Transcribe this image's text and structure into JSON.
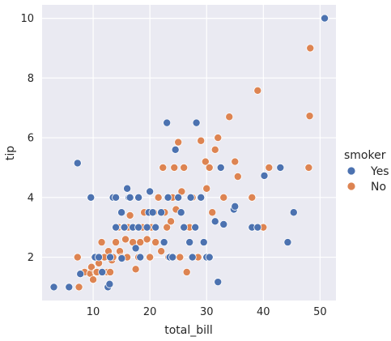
{
  "chart_data": {
    "type": "scatter",
    "title": "",
    "xlabel": "total_bill",
    "ylabel": "tip",
    "xlim": [
      1.0,
      52.8
    ],
    "ylim": [
      0.55,
      10.45
    ],
    "xticks": [
      10,
      20,
      30,
      40,
      50
    ],
    "yticks": [
      2,
      4,
      6,
      8,
      10
    ],
    "grid": true,
    "legend": {
      "title": "smoker",
      "placement": "right"
    },
    "series": [
      {
        "name": "Yes",
        "color": "#4c72b0",
        "points": [
          [
            3.07,
            1.0
          ],
          [
            5.75,
            1.0
          ],
          [
            7.25,
            5.15
          ],
          [
            7.74,
            1.44
          ],
          [
            9.6,
            4.0
          ],
          [
            10.34,
            2.0
          ],
          [
            11.0,
            2.0
          ],
          [
            11.59,
            1.5
          ],
          [
            12.6,
            1.0
          ],
          [
            12.9,
            1.1
          ],
          [
            13.0,
            2.0
          ],
          [
            13.5,
            4.0
          ],
          [
            14.0,
            3.0
          ],
          [
            14.0,
            4.0
          ],
          [
            15.0,
            3.5
          ],
          [
            15.04,
            1.96
          ],
          [
            15.5,
            3.0
          ],
          [
            16.0,
            4.3
          ],
          [
            16.3,
            4.0
          ],
          [
            16.5,
            4.0
          ],
          [
            17.0,
            3.0
          ],
          [
            17.5,
            2.3
          ],
          [
            18.0,
            4.0
          ],
          [
            18.0,
            3.0
          ],
          [
            18.3,
            2.0
          ],
          [
            19.5,
            3.0
          ],
          [
            19.8,
            3.5
          ],
          [
            20.0,
            4.2
          ],
          [
            20.5,
            3.5
          ],
          [
            21.0,
            3.0
          ],
          [
            22.0,
            3.5
          ],
          [
            22.5,
            2.5
          ],
          [
            23.0,
            6.5
          ],
          [
            23.2,
            4.0
          ],
          [
            23.5,
            2.0
          ],
          [
            24.0,
            2.0
          ],
          [
            24.5,
            5.6
          ],
          [
            25.0,
            4.0
          ],
          [
            25.5,
            3.5
          ],
          [
            26.0,
            3.0
          ],
          [
            27.0,
            2.5
          ],
          [
            27.2,
            4.0
          ],
          [
            27.5,
            2.0
          ],
          [
            28.0,
            3.0
          ],
          [
            28.2,
            6.5
          ],
          [
            29.0,
            4.0
          ],
          [
            29.5,
            2.5
          ],
          [
            30.0,
            2.0
          ],
          [
            30.5,
            2.0
          ],
          [
            31.5,
            3.2
          ],
          [
            32.0,
            1.17
          ],
          [
            32.5,
            5.0
          ],
          [
            33.0,
            3.1
          ],
          [
            34.8,
            3.6
          ],
          [
            35.0,
            3.7
          ],
          [
            38.0,
            3.0
          ],
          [
            39.0,
            3.0
          ],
          [
            40.17,
            4.73
          ],
          [
            43.0,
            5.0
          ],
          [
            44.3,
            2.5
          ],
          [
            45.35,
            3.5
          ],
          [
            50.81,
            10.0
          ]
        ]
      },
      {
        "name": "No",
        "color": "#dd8452",
        "points": [
          [
            7.25,
            2.0
          ],
          [
            7.5,
            1.0
          ],
          [
            8.5,
            1.5
          ],
          [
            9.5,
            1.45
          ],
          [
            9.7,
            1.67
          ],
          [
            10.0,
            1.25
          ],
          [
            10.2,
            2.0
          ],
          [
            10.5,
            1.5
          ],
          [
            10.65,
            1.5
          ],
          [
            11.0,
            1.8
          ],
          [
            11.5,
            2.5
          ],
          [
            12.0,
            2.0
          ],
          [
            12.5,
            1.5
          ],
          [
            12.7,
            2.2
          ],
          [
            13.0,
            1.5
          ],
          [
            13.3,
            1.9
          ],
          [
            13.5,
            2.0
          ],
          [
            14.0,
            2.5
          ],
          [
            14.5,
            3.0
          ],
          [
            14.7,
            2.2
          ],
          [
            15.0,
            2.0
          ],
          [
            15.4,
            3.0
          ],
          [
            15.7,
            2.6
          ],
          [
            16.0,
            2.0
          ],
          [
            16.2,
            3.0
          ],
          [
            16.5,
            3.4
          ],
          [
            17.0,
            2.5
          ],
          [
            17.3,
            3.0
          ],
          [
            17.5,
            1.6
          ],
          [
            18.0,
            2.0
          ],
          [
            18.3,
            2.5
          ],
          [
            18.7,
            3.0
          ],
          [
            19.0,
            3.5
          ],
          [
            19.5,
            2.6
          ],
          [
            20.0,
            2.0
          ],
          [
            20.3,
            3.0
          ],
          [
            20.7,
            3.5
          ],
          [
            21.0,
            2.5
          ],
          [
            21.5,
            4.0
          ],
          [
            22.0,
            2.2
          ],
          [
            22.3,
            5.0
          ],
          [
            22.6,
            3.5
          ],
          [
            23.0,
            3.0
          ],
          [
            23.3,
            2.0
          ],
          [
            23.7,
            3.2
          ],
          [
            24.0,
            4.0
          ],
          [
            24.3,
            5.0
          ],
          [
            24.6,
            3.6
          ],
          [
            25.0,
            5.85
          ],
          [
            25.3,
            2.0
          ],
          [
            25.6,
            4.2
          ],
          [
            26.0,
            5.0
          ],
          [
            26.5,
            1.5
          ],
          [
            27.0,
            3.0
          ],
          [
            27.5,
            4.0
          ],
          [
            28.0,
            3.0
          ],
          [
            28.5,
            2.0
          ],
          [
            29.0,
            5.9
          ],
          [
            29.8,
            5.2
          ],
          [
            30.0,
            4.3
          ],
          [
            30.5,
            5.0
          ],
          [
            31.0,
            3.5
          ],
          [
            31.5,
            5.6
          ],
          [
            32.0,
            6.0
          ],
          [
            33.0,
            4.0
          ],
          [
            34.0,
            6.7
          ],
          [
            35.0,
            5.2
          ],
          [
            35.5,
            4.7
          ],
          [
            38.0,
            4.0
          ],
          [
            39.0,
            7.58
          ],
          [
            40.0,
            3.0
          ],
          [
            41.0,
            5.0
          ],
          [
            48.0,
            5.0
          ],
          [
            48.17,
            6.73
          ],
          [
            48.27,
            9.0
          ]
        ]
      }
    ]
  }
}
